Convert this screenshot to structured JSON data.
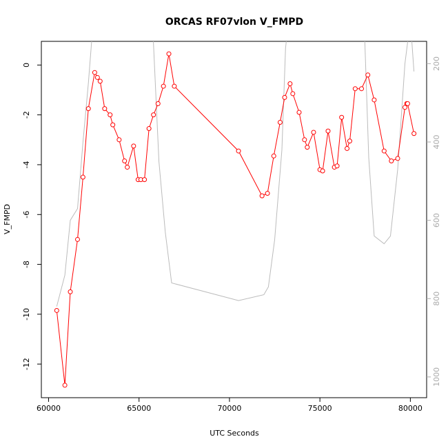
{
  "chart_data": {
    "type": "line",
    "title": "ORCAS RF07vlon V_FMPD",
    "xlabel": "UTC Seconds",
    "ylabel": "V_FMPD",
    "xlim": [
      59600,
      80900
    ],
    "ylim": [
      -13.35,
      0.95
    ],
    "x_ticks": [
      60000,
      65000,
      70000,
      75000,
      80000
    ],
    "y_ticks": [
      -12,
      -10,
      -8,
      -6,
      -4,
      -2,
      0
    ],
    "right_axis": {
      "lim": [
        1053,
        143
      ],
      "ticks": [
        1000,
        800,
        600,
        400,
        200
      ],
      "color": "#aaaaaa"
    },
    "series": [
      {
        "color": "#ff0000",
        "marker": "circle",
        "x": [
          60450,
          60900,
          61200,
          61600,
          61900,
          62200,
          62550,
          62700,
          62850,
          63100,
          63400,
          63550,
          63900,
          64200,
          64350,
          64700,
          64950,
          65100,
          65300,
          65550,
          65800,
          66050,
          66350,
          66650,
          66950,
          70500,
          71800,
          72100,
          72450,
          72800,
          73050,
          73350,
          73500,
          73850,
          74150,
          74300,
          74650,
          75000,
          75150,
          75450,
          75800,
          75950,
          76200,
          76500,
          76650,
          76950,
          77300,
          77650,
          78000,
          78550,
          78950,
          79300,
          79700,
          79800,
          79850,
          80200
        ],
        "values": [
          -9.85,
          -12.85,
          -9.1,
          -7.0,
          -4.5,
          -1.75,
          -0.3,
          -0.5,
          -0.65,
          -1.75,
          -2.0,
          -2.4,
          -3.0,
          -3.85,
          -4.1,
          -3.25,
          -4.6,
          -4.6,
          -4.6,
          -2.55,
          -2.0,
          -1.55,
          -0.85,
          0.45,
          -0.85,
          -3.45,
          -5.25,
          -5.15,
          -3.65,
          -2.3,
          -1.3,
          -0.75,
          -1.15,
          -1.9,
          -3.0,
          -3.3,
          -2.7,
          -4.2,
          -4.25,
          -2.65,
          -4.1,
          -4.05,
          -2.1,
          -3.35,
          -3.05,
          -0.95,
          -0.95,
          -0.4,
          -1.4,
          -3.45,
          -3.85,
          -3.75,
          -1.7,
          -1.55,
          -1.55,
          -2.75
        ]
      },
      {
        "color": "#bbbbbb",
        "marker": "none",
        "axis": "right",
        "x": [
          60450,
          60900,
          61200,
          61600,
          61900,
          62200,
          62350,
          62450,
          65750,
          66100,
          66450,
          66800,
          70500,
          71900,
          72150,
          72500,
          72900,
          73100,
          73250,
          77450,
          77700,
          78000,
          78550,
          78900,
          79300,
          79700,
          80000,
          80200
        ],
        "values": [
          820,
          740,
          600,
          570,
          400,
          250,
          160,
          100,
          100,
          450,
          630,
          760,
          805,
          790,
          770,
          650,
          420,
          160,
          100,
          100,
          440,
          640,
          660,
          640,
          470,
          200,
          90,
          220
        ]
      }
    ]
  }
}
